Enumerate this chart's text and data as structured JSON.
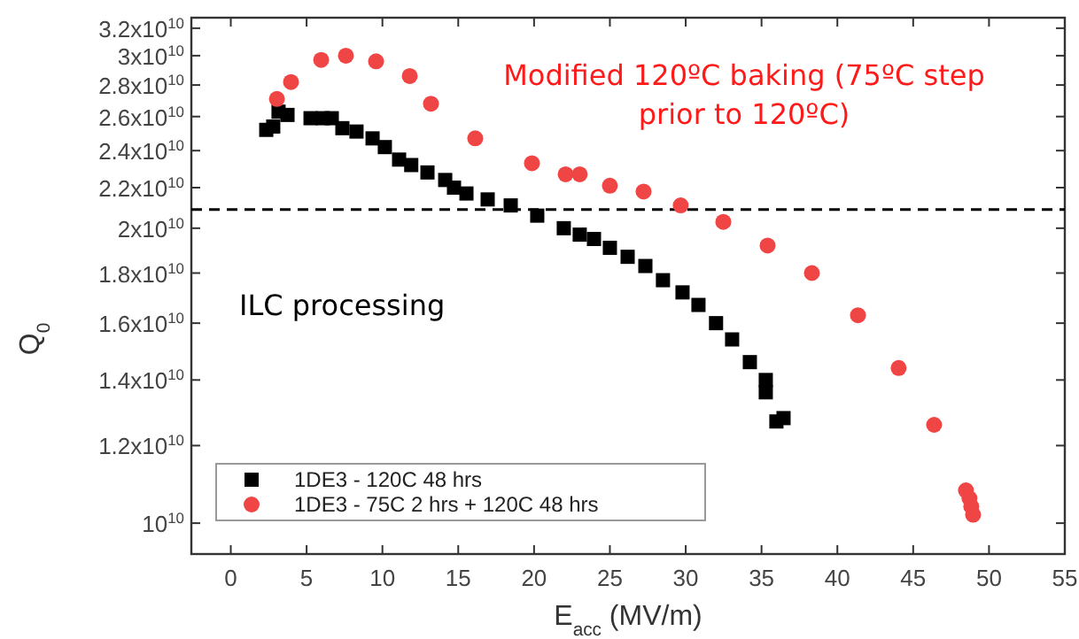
{
  "chart_data": {
    "type": "scatter",
    "xlabel": "E$_{acc}$ (MV/m)",
    "ylabel": "Q$_{0}$",
    "xlim": [
      -2.6,
      55
    ],
    "xticks": [
      0,
      5,
      10,
      15,
      20,
      25,
      30,
      35,
      40,
      45,
      50,
      55
    ],
    "ylim": [
      9300000000.0,
      32800000000.0
    ],
    "log": "y",
    "yticks": [
      {
        "value": 10000000000.0,
        "label": "10$^{10}$"
      },
      {
        "value": 12000000000.0,
        "label": "1.2x10$^{10}$"
      },
      {
        "value": 14000000000.0,
        "label": "1.4x10$^{10}$"
      },
      {
        "value": 16000000000.0,
        "label": "1.6x10$^{10}$"
      },
      {
        "value": 18000000000.0,
        "label": "1.8x10$^{10}$"
      },
      {
        "value": 20000000000.0,
        "label": "2x10$^{10}$"
      },
      {
        "value": 22000000000.0,
        "label": "2.2x10$^{10}$"
      },
      {
        "value": 24000000000.0,
        "label": "2.4x10$^{10}$"
      },
      {
        "value": 26000000000.0,
        "label": "2.6x10$^{10}$"
      },
      {
        "value": 28000000000.0,
        "label": "2.8x10$^{10}$"
      },
      {
        "value": 30000000000.0,
        "label": "3x10$^{10}$"
      },
      {
        "value": 32000000000.0,
        "label": "3.2x10$^{10}$"
      }
    ],
    "legend": "bottom left",
    "grid": false,
    "series": [
      {
        "name": "1DE3 - 120C 48 hrs",
        "color": "#000000",
        "marker": "square",
        "x": [
          2.34,
          2.8,
          3.15,
          3.74,
          5.26,
          6.07,
          6.66,
          7.36,
          8.29,
          9.35,
          10.16,
          11.1,
          11.9,
          12.97,
          14.14,
          14.72,
          15.54,
          16.94,
          18.46,
          20.21,
          21.96,
          23.01,
          23.95,
          25.0,
          26.17,
          27.34,
          28.5,
          29.79,
          30.84,
          32.0,
          33.06,
          34.23,
          35.28,
          35.28,
          36.45,
          35.98
        ],
        "values": [
          25200000000.0,
          25400000000.0,
          26300000000.0,
          26100000000.0,
          25900000000.0,
          25900000000.0,
          25900000000.0,
          25300000000.0,
          25100000000.0,
          24700000000.0,
          24200000000.0,
          23500000000.0,
          23200000000.0,
          22800000000.0,
          22400000000.0,
          22000000000.0,
          21700000000.0,
          21400000000.0,
          21100000000.0,
          20600000000.0,
          20000000000.0,
          19700000000.0,
          19500000000.0,
          19100000000.0,
          18700000000.0,
          18300000000.0,
          17700000000.0,
          17200000000.0,
          16700000000.0,
          16000000000.0,
          15400000000.0,
          14600000000.0,
          14000000000.0,
          13600000000.0,
          12800000000.0,
          12700000000.0
        ]
      },
      {
        "name": "1DE3 - 75C 2 hrs + 120C 48 hrs",
        "color": "#f04545",
        "marker": "circle",
        "x": [
          3.04,
          3.97,
          5.96,
          7.59,
          9.58,
          11.8,
          13.2,
          16.12,
          19.86,
          22.08,
          23.01,
          25.0,
          27.22,
          29.67,
          32.48,
          35.4,
          38.32,
          41.36,
          44.04,
          46.38,
          48.48,
          48.71,
          48.83,
          48.95
        ],
        "values": [
          27100000000.0,
          28200000000.0,
          29700000000.0,
          30000000000.0,
          29600000000.0,
          28600000000.0,
          26800000000.0,
          24700000000.0,
          23300000000.0,
          22700000000.0,
          22700000000.0,
          22100000000.0,
          21800000000.0,
          21100000000.0,
          20300000000.0,
          19200000000.0,
          18000000000.0,
          16300000000.0,
          14400000000.0,
          12600000000.0,
          10800000000.0,
          10600000000.0,
          10400000000.0,
          10200000000.0
        ]
      }
    ],
    "ref_lines": [
      {
        "axis": "y",
        "value": 20900000000.0,
        "color": "#000000",
        "line_style": "dashed"
      }
    ],
    "annotations": [
      "Modified 120ºC baking (75ºC step prior to 120ºC)",
      "ILC processing"
    ]
  }
}
